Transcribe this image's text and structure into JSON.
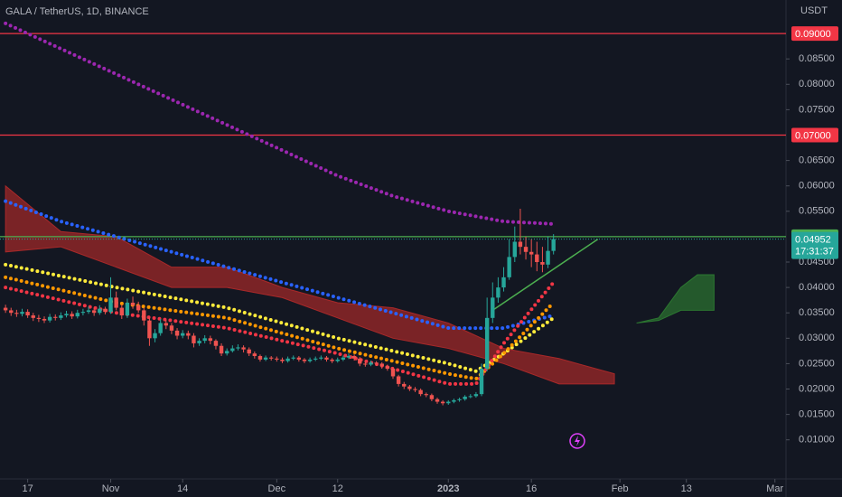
{
  "chart_data": {
    "type": "candlestick",
    "title": "GALA / TetherUS, 1D, BINANCE",
    "y_axis_label": "USDT",
    "up_color": "#26a69a",
    "down_color": "#ef5350",
    "x": [
      0,
      1,
      2,
      3,
      4,
      5,
      6,
      7,
      8,
      9,
      10,
      11,
      12,
      13,
      14,
      15,
      16,
      17,
      18,
      19,
      20,
      21,
      22,
      23,
      24,
      25,
      26,
      27,
      28,
      29,
      30,
      31,
      32,
      33,
      34,
      35,
      36,
      37,
      38,
      39,
      40,
      41,
      42,
      43,
      44,
      45,
      46,
      47,
      48,
      49,
      50,
      51,
      52,
      53,
      54,
      55,
      56,
      57,
      58,
      59,
      60,
      61,
      62,
      63,
      64,
      65,
      66,
      67,
      68,
      69,
      70,
      71,
      72,
      73,
      74,
      75,
      76,
      77,
      78,
      79,
      80,
      81,
      82,
      83,
      84,
      85,
      86,
      87,
      88,
      89,
      90,
      91,
      92,
      93,
      94,
      95,
      96,
      97,
      98,
      99
    ],
    "open": [
      0.036,
      0.0355,
      0.035,
      0.0348,
      0.0352,
      0.0345,
      0.034,
      0.0338,
      0.0335,
      0.0342,
      0.034,
      0.0345,
      0.0348,
      0.0343,
      0.035,
      0.0352,
      0.0355,
      0.035,
      0.0358,
      0.0352,
      0.038,
      0.036,
      0.0345,
      0.037,
      0.0365,
      0.0355,
      0.0335,
      0.03,
      0.031,
      0.033,
      0.0325,
      0.0315,
      0.0305,
      0.031,
      0.0305,
      0.029,
      0.0295,
      0.03,
      0.0295,
      0.0285,
      0.027,
      0.0275,
      0.028,
      0.0282,
      0.0278,
      0.027,
      0.0265,
      0.0258,
      0.0262,
      0.026,
      0.0258,
      0.0255,
      0.026,
      0.0262,
      0.0258,
      0.0255,
      0.0258,
      0.026,
      0.0262,
      0.0258,
      0.0255,
      0.0258,
      0.0262,
      0.0265,
      0.026,
      0.025,
      0.0248,
      0.0252,
      0.025,
      0.0245,
      0.024,
      0.0225,
      0.021,
      0.0205,
      0.02,
      0.0198,
      0.019,
      0.0188,
      0.018,
      0.0175,
      0.0172,
      0.0175,
      0.0178,
      0.018,
      0.0185,
      0.0186,
      0.019,
      0.024,
      0.034,
      0.038,
      0.04,
      0.042,
      0.046,
      0.049,
      0.048,
      0.047,
      0.0465,
      0.045,
      0.0445,
      0.0472
    ],
    "high": [
      0.0366,
      0.036,
      0.0356,
      0.0358,
      0.0357,
      0.035,
      0.0346,
      0.0343,
      0.0348,
      0.0347,
      0.0351,
      0.0354,
      0.0353,
      0.0356,
      0.0358,
      0.0362,
      0.036,
      0.0365,
      0.0362,
      0.042,
      0.0392,
      0.0366,
      0.0378,
      0.0382,
      0.0372,
      0.036,
      0.034,
      0.0318,
      0.0338,
      0.0336,
      0.033,
      0.032,
      0.0316,
      0.0315,
      0.031,
      0.03,
      0.0306,
      0.0305,
      0.0298,
      0.029,
      0.028,
      0.0286,
      0.0288,
      0.0286,
      0.0282,
      0.0274,
      0.0268,
      0.0266,
      0.0265,
      0.0264,
      0.0262,
      0.0264,
      0.0266,
      0.0265,
      0.0261,
      0.0262,
      0.0264,
      0.0266,
      0.0265,
      0.0261,
      0.0262,
      0.0266,
      0.027,
      0.0268,
      0.0263,
      0.0254,
      0.0256,
      0.0255,
      0.0253,
      0.0248,
      0.0243,
      0.0228,
      0.0214,
      0.0208,
      0.0204,
      0.0201,
      0.0193,
      0.0191,
      0.0183,
      0.0178,
      0.0178,
      0.0181,
      0.0183,
      0.0188,
      0.019,
      0.0194,
      0.025,
      0.038,
      0.041,
      0.042,
      0.044,
      0.0495,
      0.052,
      0.0555,
      0.05,
      0.0495,
      0.049,
      0.048,
      0.05,
      0.0505
    ],
    "low": [
      0.035,
      0.0344,
      0.0342,
      0.0343,
      0.034,
      0.0334,
      0.0332,
      0.033,
      0.0331,
      0.0335,
      0.0336,
      0.0341,
      0.0338,
      0.0339,
      0.0345,
      0.0348,
      0.0344,
      0.0346,
      0.0347,
      0.0348,
      0.0355,
      0.0338,
      0.034,
      0.0358,
      0.035,
      0.0325,
      0.0285,
      0.0292,
      0.0305,
      0.0318,
      0.0308,
      0.0298,
      0.03,
      0.0298,
      0.0282,
      0.0285,
      0.029,
      0.0288,
      0.0278,
      0.0265,
      0.0266,
      0.0272,
      0.0276,
      0.0272,
      0.0265,
      0.026,
      0.0254,
      0.0255,
      0.0256,
      0.0254,
      0.0251,
      0.0252,
      0.0257,
      0.0254,
      0.0251,
      0.0252,
      0.0255,
      0.0257,
      0.0254,
      0.0251,
      0.0252,
      0.0255,
      0.0259,
      0.0256,
      0.0245,
      0.0244,
      0.0245,
      0.0246,
      0.024,
      0.0236,
      0.022,
      0.0205,
      0.02,
      0.0196,
      0.0194,
      0.0186,
      0.0184,
      0.0176,
      0.0171,
      0.0168,
      0.0169,
      0.0172,
      0.0175,
      0.0177,
      0.0182,
      0.0183,
      0.0186,
      0.0235,
      0.033,
      0.037,
      0.0392,
      0.0415,
      0.045,
      0.0465,
      0.0455,
      0.044,
      0.0432,
      0.043,
      0.0438,
      0.0465
    ],
    "close": [
      0.0355,
      0.035,
      0.0348,
      0.0352,
      0.0345,
      0.034,
      0.0338,
      0.0335,
      0.0342,
      0.034,
      0.0345,
      0.0348,
      0.0343,
      0.035,
      0.0352,
      0.0355,
      0.035,
      0.0358,
      0.0352,
      0.038,
      0.036,
      0.0345,
      0.037,
      0.0365,
      0.0355,
      0.0335,
      0.03,
      0.031,
      0.033,
      0.0325,
      0.0315,
      0.0305,
      0.031,
      0.0305,
      0.029,
      0.0295,
      0.03,
      0.0295,
      0.0285,
      0.027,
      0.0275,
      0.028,
      0.0282,
      0.0278,
      0.027,
      0.0265,
      0.0258,
      0.0262,
      0.026,
      0.0258,
      0.0255,
      0.026,
      0.0262,
      0.0258,
      0.0255,
      0.0258,
      0.026,
      0.0262,
      0.0258,
      0.0255,
      0.0258,
      0.0262,
      0.0265,
      0.026,
      0.025,
      0.0248,
      0.0252,
      0.025,
      0.0245,
      0.024,
      0.0225,
      0.021,
      0.0205,
      0.02,
      0.0198,
      0.019,
      0.0188,
      0.018,
      0.0175,
      0.0172,
      0.0175,
      0.0178,
      0.018,
      0.0185,
      0.0186,
      0.019,
      0.024,
      0.034,
      0.038,
      0.04,
      0.042,
      0.046,
      0.049,
      0.048,
      0.047,
      0.0465,
      0.045,
      0.0445,
      0.0472,
      0.04952
    ],
    "xlim": [
      -1,
      141
    ],
    "xticks": [
      {
        "value": 4,
        "label": "17"
      },
      {
        "value": 19,
        "label": "Nov"
      },
      {
        "value": 32,
        "label": "14"
      },
      {
        "value": 49,
        "label": "Dec"
      },
      {
        "value": 60,
        "label": "12"
      },
      {
        "value": 80,
        "label": "2023"
      },
      {
        "value": 95,
        "label": "16"
      },
      {
        "value": 111,
        "label": "Feb"
      },
      {
        "value": 123,
        "label": "13"
      },
      {
        "value": 139,
        "label": "Mar"
      }
    ],
    "ylim": [
      0.0023,
      0.0966
    ],
    "yticks": [
      {
        "value": 0.085,
        "label": "0.08500"
      },
      {
        "value": 0.08,
        "label": "0.08000"
      },
      {
        "value": 0.075,
        "label": "0.07500"
      },
      {
        "value": 0.065,
        "label": "0.06500"
      },
      {
        "value": 0.06,
        "label": "0.06000"
      },
      {
        "value": 0.055,
        "label": "0.05500"
      },
      {
        "value": 0.045,
        "label": "0.04500"
      },
      {
        "value": 0.04,
        "label": "0.04000"
      },
      {
        "value": 0.035,
        "label": "0.03500"
      },
      {
        "value": 0.03,
        "label": "0.03000"
      },
      {
        "value": 0.025,
        "label": "0.02500"
      },
      {
        "value": 0.02,
        "label": "0.02000"
      },
      {
        "value": 0.015,
        "label": "0.01500"
      },
      {
        "value": 0.01,
        "label": "0.01000"
      }
    ],
    "cloud": [
      {
        "color": "#b22a2a",
        "x": [
          0,
          10,
          20,
          30,
          40,
          50,
          60,
          70,
          80,
          90,
          100,
          110
        ],
        "upper": [
          0.06,
          0.051,
          0.05,
          0.044,
          0.044,
          0.04,
          0.037,
          0.036,
          0.033,
          0.028,
          0.026,
          0.023
        ],
        "lower": [
          0.047,
          0.048,
          0.044,
          0.04,
          0.04,
          0.038,
          0.034,
          0.03,
          0.028,
          0.025,
          0.021,
          0.021
        ]
      },
      {
        "color": "#2e7d32",
        "x": [
          114,
          118,
          122,
          125,
          128
        ],
        "upper": [
          0.033,
          0.034,
          0.04,
          0.0425,
          0.0425
        ],
        "lower": [
          0.033,
          0.0335,
          0.0355,
          0.0355,
          0.0355
        ]
      }
    ],
    "indicators": [
      {
        "color": "#9c27b0",
        "x": [
          0,
          10,
          20,
          30,
          40,
          50,
          60,
          70,
          80,
          90,
          99
        ],
        "values": [
          0.092,
          0.087,
          0.082,
          0.077,
          0.072,
          0.067,
          0.062,
          0.058,
          0.055,
          0.053,
          0.0525
        ]
      },
      {
        "color": "#2962ff",
        "x": [
          0,
          10,
          20,
          30,
          40,
          50,
          60,
          70,
          80,
          90,
          99
        ],
        "values": [
          0.057,
          0.053,
          0.05,
          0.047,
          0.044,
          0.041,
          0.038,
          0.035,
          0.032,
          0.032,
          0.0345
        ]
      },
      {
        "color": "#ffeb3b",
        "x": [
          0,
          20,
          40,
          60,
          80,
          85,
          90,
          99
        ],
        "values": [
          0.0445,
          0.04,
          0.036,
          0.03,
          0.025,
          0.0235,
          0.027,
          0.034
        ]
      },
      {
        "color": "#ff9800",
        "x": [
          0,
          20,
          40,
          60,
          80,
          85,
          90,
          99
        ],
        "values": [
          0.042,
          0.037,
          0.034,
          0.028,
          0.023,
          0.022,
          0.027,
          0.037
        ]
      },
      {
        "color": "#f23645",
        "x": [
          0,
          20,
          40,
          60,
          80,
          85,
          90,
          99
        ],
        "values": [
          0.04,
          0.035,
          0.032,
          0.027,
          0.021,
          0.021,
          0.029,
          0.041
        ]
      }
    ],
    "hlines": [
      {
        "value": 0.09,
        "label": "0.09000",
        "color": "#f23645"
      },
      {
        "value": 0.07,
        "label": "0.07000",
        "color": "#f23645"
      },
      {
        "value": 0.05,
        "label": "0.05000",
        "color": "#4caf50"
      }
    ],
    "trendline": {
      "x": [
        88,
        107
      ],
      "values": [
        0.0355,
        0.0495
      ],
      "color": "#4caf50"
    },
    "last_price": {
      "value": 0.04952,
      "countdown": "17:31:37",
      "color": "#26a69a"
    }
  }
}
